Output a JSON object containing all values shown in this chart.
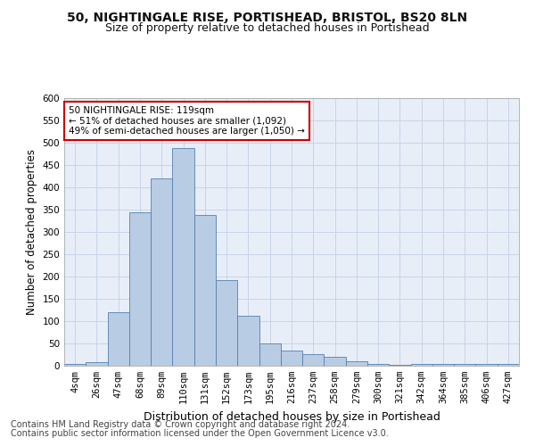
{
  "title1": "50, NIGHTINGALE RISE, PORTISHEAD, BRISTOL, BS20 8LN",
  "title2": "Size of property relative to detached houses in Portishead",
  "xlabel": "Distribution of detached houses by size in Portishead",
  "ylabel": "Number of detached properties",
  "categories": [
    "4sqm",
    "26sqm",
    "47sqm",
    "68sqm",
    "89sqm",
    "110sqm",
    "131sqm",
    "152sqm",
    "173sqm",
    "195sqm",
    "216sqm",
    "237sqm",
    "258sqm",
    "279sqm",
    "300sqm",
    "321sqm",
    "342sqm",
    "364sqm",
    "385sqm",
    "406sqm",
    "427sqm"
  ],
  "values": [
    5,
    8,
    120,
    345,
    420,
    488,
    338,
    193,
    112,
    50,
    35,
    27,
    20,
    10,
    4,
    3,
    5,
    4,
    4,
    5,
    4
  ],
  "bar_color": "#b8cce4",
  "bar_edge_color": "#5580b0",
  "highlight_index": 5,
  "ylim": [
    0,
    600
  ],
  "yticks": [
    0,
    50,
    100,
    150,
    200,
    250,
    300,
    350,
    400,
    450,
    500,
    550,
    600
  ],
  "annotation_text": "50 NIGHTINGALE RISE: 119sqm\n← 51% of detached houses are smaller (1,092)\n49% of semi-detached houses are larger (1,050) →",
  "annotation_box_color": "#ffffff",
  "annotation_border_color": "#cc0000",
  "footer1": "Contains HM Land Registry data © Crown copyright and database right 2024.",
  "footer2": "Contains public sector information licensed under the Open Government Licence v3.0.",
  "grid_color": "#c8d4e8",
  "bg_color": "#e8eef8",
  "title1_fontsize": 10,
  "title2_fontsize": 9,
  "xlabel_fontsize": 9,
  "ylabel_fontsize": 8.5,
  "tick_fontsize": 7.5,
  "footer_fontsize": 7
}
